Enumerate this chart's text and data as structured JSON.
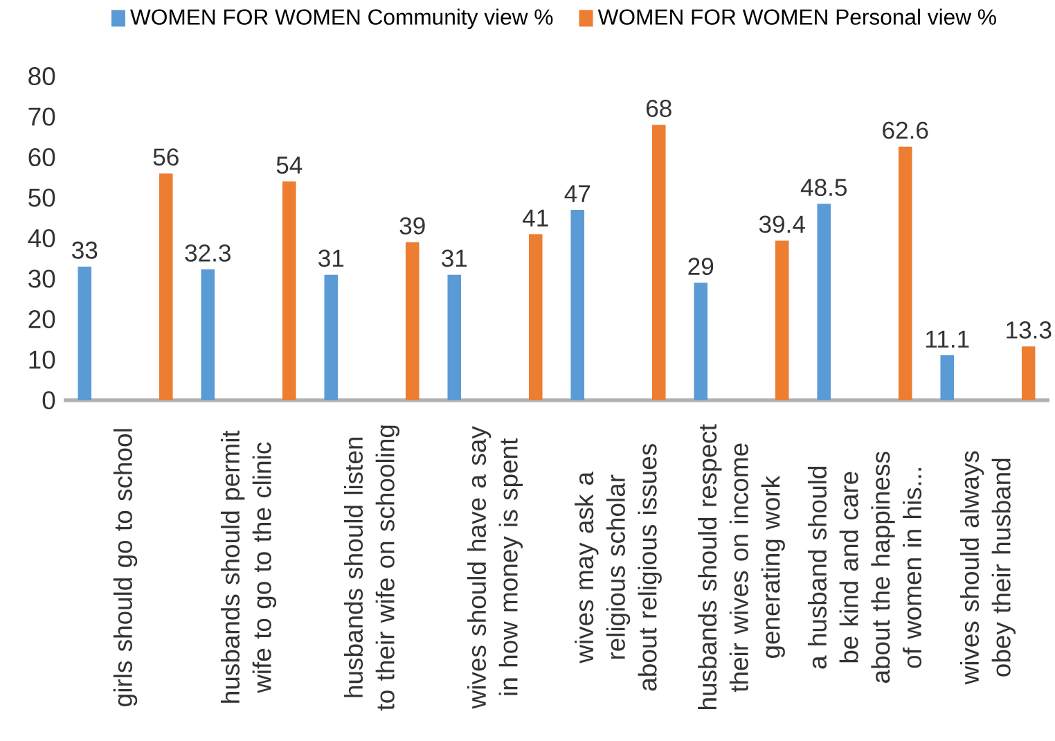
{
  "chart_data": {
    "type": "bar",
    "categories": [
      "girls should go to school",
      "husbands should permit wife to go to the clinic",
      "husbands should listen to their wife on schooling",
      "wives should have a say in how money is spent",
      "wives may ask a religious scholar about religious issues",
      "husbands should respect their wives on income generating work",
      "a husband should be kind and care about the happiness of  women in his...",
      "wives should always obey their husband"
    ],
    "series": [
      {
        "name": "WOMEN FOR WOMEN  Community view %",
        "color": "#5b9bd5",
        "values": [
          33,
          32.3,
          31,
          31,
          47,
          29,
          48.5,
          11.1
        ]
      },
      {
        "name": "WOMEN FOR WOMEN  Personal view %",
        "color": "#ed7d31",
        "values": [
          56,
          54,
          39,
          41,
          68,
          39.4,
          62.6,
          13.3
        ]
      }
    ],
    "ylim": [
      0,
      80
    ],
    "yticks": [
      0,
      10,
      20,
      30,
      40,
      50,
      60,
      70,
      80
    ],
    "data_labels": true,
    "legend": "top"
  }
}
